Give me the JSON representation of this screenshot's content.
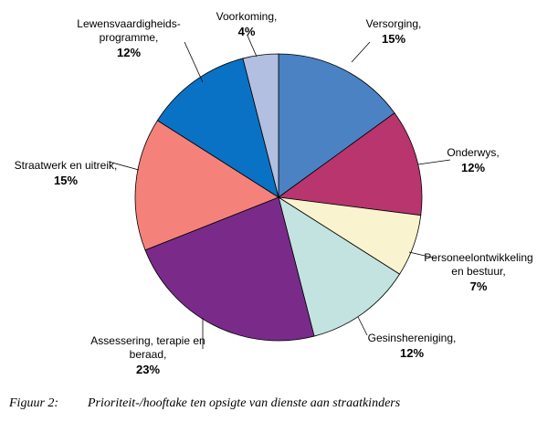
{
  "chart_data": {
    "type": "pie",
    "slices": [
      {
        "label": [
          "Versorging,"
        ],
        "value_label": "15%",
        "value": 15,
        "color": "#4a82c3"
      },
      {
        "label": [
          "Onderwys,"
        ],
        "value_label": "12%",
        "value": 12,
        "color": "#b8356e"
      },
      {
        "label": [
          "Personeelontwikkeling",
          "en bestuur,"
        ],
        "value_label": "7%",
        "value": 7,
        "color": "#faf3cf"
      },
      {
        "label": [
          "Gesinshereniging,"
        ],
        "value_label": "12%",
        "value": 12,
        "color": "#c3e3e1"
      },
      {
        "label": [
          "Assessering, terapie en",
          "beraad,"
        ],
        "value_label": "23%",
        "value": 23,
        "color": "#7a2b8a"
      },
      {
        "label": [
          "Straatwerk en uitreik,"
        ],
        "value_label": "15%",
        "value": 15,
        "color": "#f4827a"
      },
      {
        "label": [
          "Lewensvaardigheids-",
          "programme,"
        ],
        "value_label": "12%",
        "value": 12,
        "color": "#0a72c4"
      },
      {
        "label": [
          "Voorkoming,"
        ],
        "value_label": "4%",
        "value": 4,
        "color": "#b3bfe0"
      }
    ]
  },
  "caption": {
    "number": "Figuur 2:",
    "text": "Prioriteit-/hooftake ten opsigte van dienste aan straatkinders"
  }
}
